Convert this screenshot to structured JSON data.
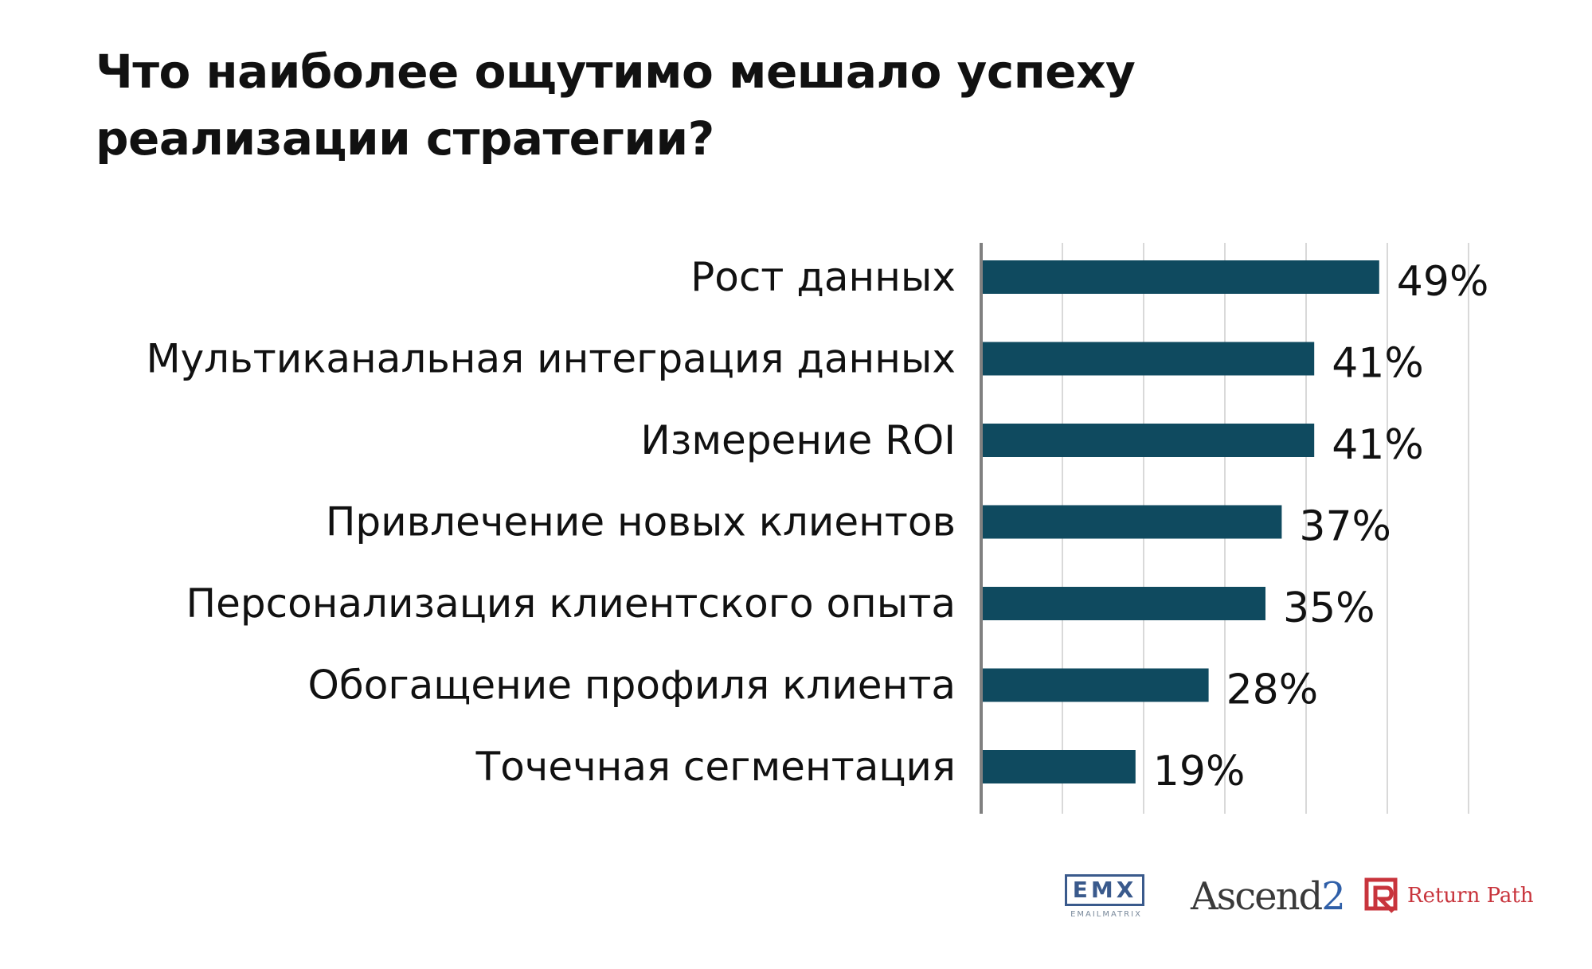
{
  "title": "Что наиболее ощутимо мешало успеху реализации стратегии?",
  "chart_data": {
    "type": "bar",
    "orientation": "horizontal",
    "title": "Что наиболее ощутимо мешало успеху реализации стратегии?",
    "categories": [
      "Рост данных",
      "Мультиканальная интеграция данных",
      "Измерение ROI",
      "Привлечение новых клиентов",
      "Персонализация клиентского опыта",
      "Обогащение профиля клиента",
      "Точечная сегментация"
    ],
    "values": [
      49,
      41,
      41,
      37,
      35,
      28,
      19
    ],
    "value_labels": [
      "49%",
      "41%",
      "41%",
      "37%",
      "35%",
      "28%",
      "19%"
    ],
    "unit": "%",
    "xlim": [
      0,
      60
    ],
    "gridlines": [
      10,
      20,
      30,
      40,
      50,
      60
    ],
    "grid": true,
    "legend": "none",
    "bar_color": "#0f4a5f",
    "grid_color": "#d9d9d9",
    "axis_color": "#808080"
  },
  "logos": {
    "emx": {
      "mark": "EMX",
      "subtitle": "EMAILMATRIX",
      "color": "#3a5a8c"
    },
    "ascend2": {
      "text": "Ascend",
      "numeral": "2",
      "color": "#2f5fa8"
    },
    "return_path": {
      "text": "Return Path",
      "color": "#c8343c",
      "icon": "return-path-logo-icon"
    }
  }
}
